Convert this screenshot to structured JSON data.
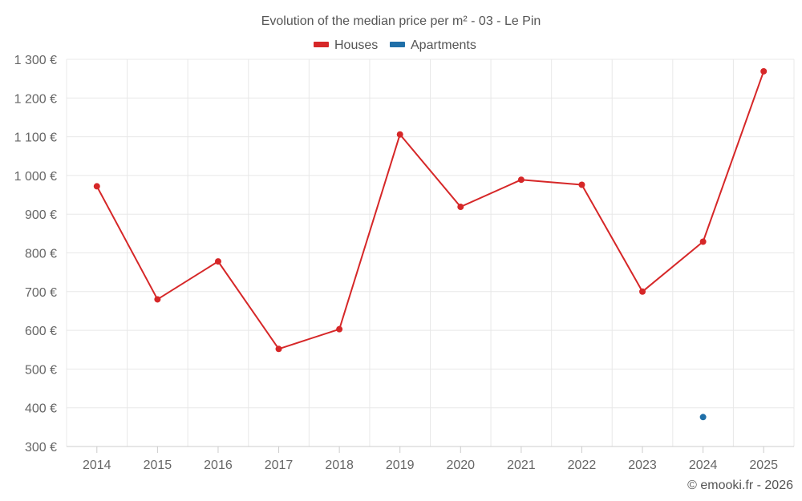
{
  "chart_data": {
    "type": "line",
    "title": "Evolution of the median price per m² - 03 - Le Pin",
    "categories": [
      "2014",
      "2015",
      "2016",
      "2017",
      "2018",
      "2019",
      "2020",
      "2021",
      "2022",
      "2023",
      "2024",
      "2025"
    ],
    "ylim": [
      300,
      1300
    ],
    "yticks": [
      300,
      400,
      500,
      600,
      700,
      800,
      900,
      1000,
      1100,
      1200,
      1300
    ],
    "ytick_labels": [
      "300 €",
      "400 €",
      "500 €",
      "600 €",
      "700 €",
      "800 €",
      "900 €",
      "1 000 €",
      "1 100 €",
      "1 200 €",
      "1 300 €"
    ],
    "grid": true,
    "legend": "top-center",
    "series": [
      {
        "name": "Houses",
        "color": "#d62728",
        "values": [
          972,
          680,
          778,
          552,
          603,
          1106,
          919,
          989,
          976,
          700,
          829,
          1269
        ]
      },
      {
        "name": "Apartments",
        "color": "#1f6fa8",
        "values": [
          null,
          null,
          null,
          null,
          null,
          null,
          null,
          null,
          null,
          null,
          376,
          null
        ]
      }
    ]
  },
  "credit": "© emooki.fr - 2026"
}
